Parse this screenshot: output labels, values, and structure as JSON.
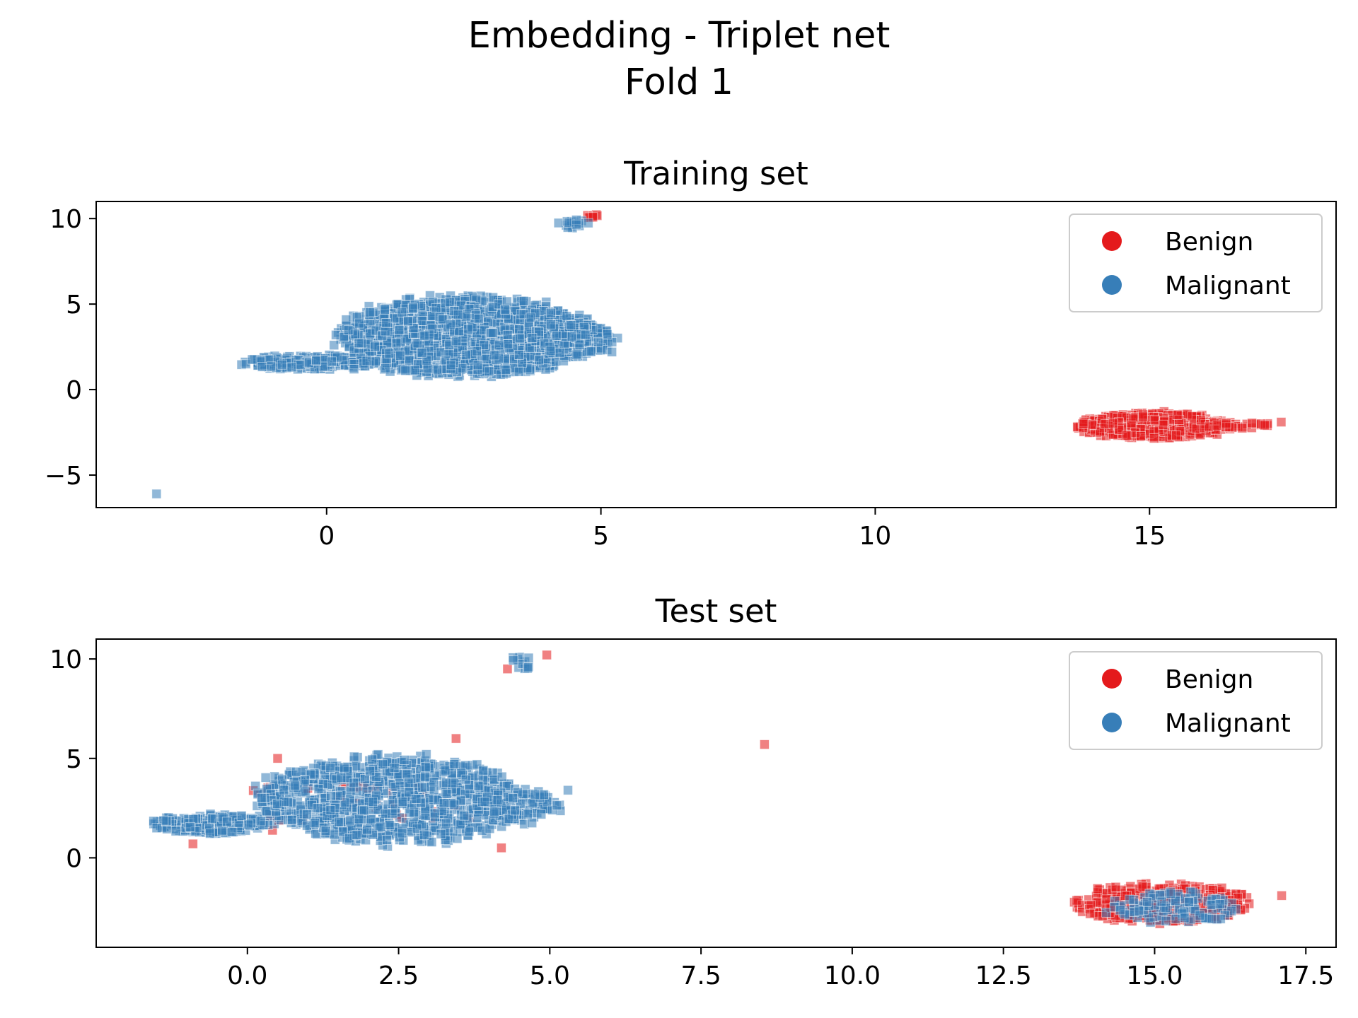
{
  "figure": {
    "title_line1": "Embedding - Triplet net",
    "title_line2": "Fold 1"
  },
  "colors": {
    "benign": "#e41a1c",
    "malignant": "#377eb8"
  },
  "chart_data": [
    {
      "type": "scatter",
      "title": "Training set",
      "xlabel": "",
      "ylabel": "",
      "xlim": [
        -4.2,
        18.4
      ],
      "ylim": [
        -6.9,
        11.0
      ],
      "xticks": [
        0,
        5,
        10,
        15
      ],
      "xtick_labels": [
        "0",
        "5",
        "10",
        "15"
      ],
      "yticks": [
        -5,
        0,
        5,
        10
      ],
      "ytick_labels": [
        "−5",
        "0",
        "5",
        "10"
      ],
      "grid": false,
      "legend": {
        "position": "top-right",
        "entries": [
          "Benign",
          "Malignant"
        ]
      },
      "series": [
        {
          "name": "Benign",
          "color": "#e41a1c",
          "clusters": [
            {
              "cx": 15.1,
              "cy": -2.1,
              "rx": 1.35,
              "ry": 0.75,
              "n": 520
            },
            {
              "cx": 16.7,
              "cy": -2.1,
              "rx": 0.7,
              "ry": 0.15,
              "n": 25
            },
            {
              "cx": 4.85,
              "cy": 10.15,
              "rx": 0.12,
              "ry": 0.12,
              "n": 8
            }
          ],
          "points": [
            [
              17.4,
              -1.9
            ],
            [
              13.8,
              -2.0
            ]
          ]
        },
        {
          "name": "Malignant",
          "color": "#377eb8",
          "clusters": [
            {
              "cx": 2.6,
              "cy": 3.1,
              "rx": 2.3,
              "ry": 2.3,
              "n": 1500
            },
            {
              "cx": 4.4,
              "cy": 3.0,
              "rx": 0.85,
              "ry": 0.95,
              "n": 150
            },
            {
              "cx": -0.3,
              "cy": 1.6,
              "rx": 1.2,
              "ry": 0.45,
              "n": 220
            },
            {
              "cx": 4.5,
              "cy": 9.7,
              "rx": 0.25,
              "ry": 0.3,
              "n": 15
            }
          ],
          "points": [
            [
              -3.1,
              -6.1
            ],
            [
              5.2,
              2.2
            ],
            [
              0.5,
              1.5
            ],
            [
              0.5,
              1.2
            ]
          ]
        }
      ]
    },
    {
      "type": "scatter",
      "title": "Test set",
      "xlabel": "",
      "ylabel": "",
      "xlim": [
        -2.5,
        18.0
      ],
      "ylim": [
        -4.5,
        11.0
      ],
      "xticks": [
        0,
        2.5,
        5,
        7.5,
        10,
        12.5,
        15,
        17.5
      ],
      "xtick_labels": [
        "0.0",
        "2.5",
        "5.0",
        "7.5",
        "10.0",
        "12.5",
        "15.0",
        "17.5"
      ],
      "yticks": [
        0,
        5,
        10
      ],
      "ytick_labels": [
        "0",
        "5",
        "10"
      ],
      "grid": false,
      "legend": {
        "position": "top-right",
        "entries": [
          "Benign",
          "Malignant"
        ]
      },
      "series": [
        {
          "name": "Benign",
          "color": "#e41a1c",
          "clusters": [
            {
              "cx": 15.1,
              "cy": -2.3,
              "rx": 1.45,
              "ry": 1.0,
              "n": 340
            },
            {
              "cx": 1.8,
              "cy": 2.5,
              "rx": 2.0,
              "ry": 1.6,
              "n": 35
            }
          ],
          "points": [
            [
              8.55,
              5.7
            ],
            [
              17.1,
              -1.9
            ],
            [
              3.45,
              6.0
            ],
            [
              4.3,
              9.5
            ],
            [
              4.95,
              10.2
            ],
            [
              -0.9,
              0.7
            ],
            [
              4.2,
              0.5
            ],
            [
              0.5,
              5.0
            ]
          ]
        },
        {
          "name": "Malignant",
          "color": "#377eb8",
          "clusters": [
            {
              "cx": 2.4,
              "cy": 2.9,
              "rx": 2.2,
              "ry": 2.2,
              "n": 900
            },
            {
              "cx": 4.5,
              "cy": 2.6,
              "rx": 0.7,
              "ry": 0.9,
              "n": 90
            },
            {
              "cx": -0.6,
              "cy": 1.7,
              "rx": 0.95,
              "ry": 0.5,
              "n": 180
            },
            {
              "cx": 15.3,
              "cy": -2.5,
              "rx": 1.1,
              "ry": 0.8,
              "n": 110
            },
            {
              "cx": 4.6,
              "cy": 9.8,
              "rx": 0.3,
              "ry": 0.35,
              "n": 12
            }
          ],
          "points": [
            [
              5.3,
              3.4
            ],
            [
              -1.5,
              1.5
            ]
          ]
        }
      ]
    }
  ]
}
